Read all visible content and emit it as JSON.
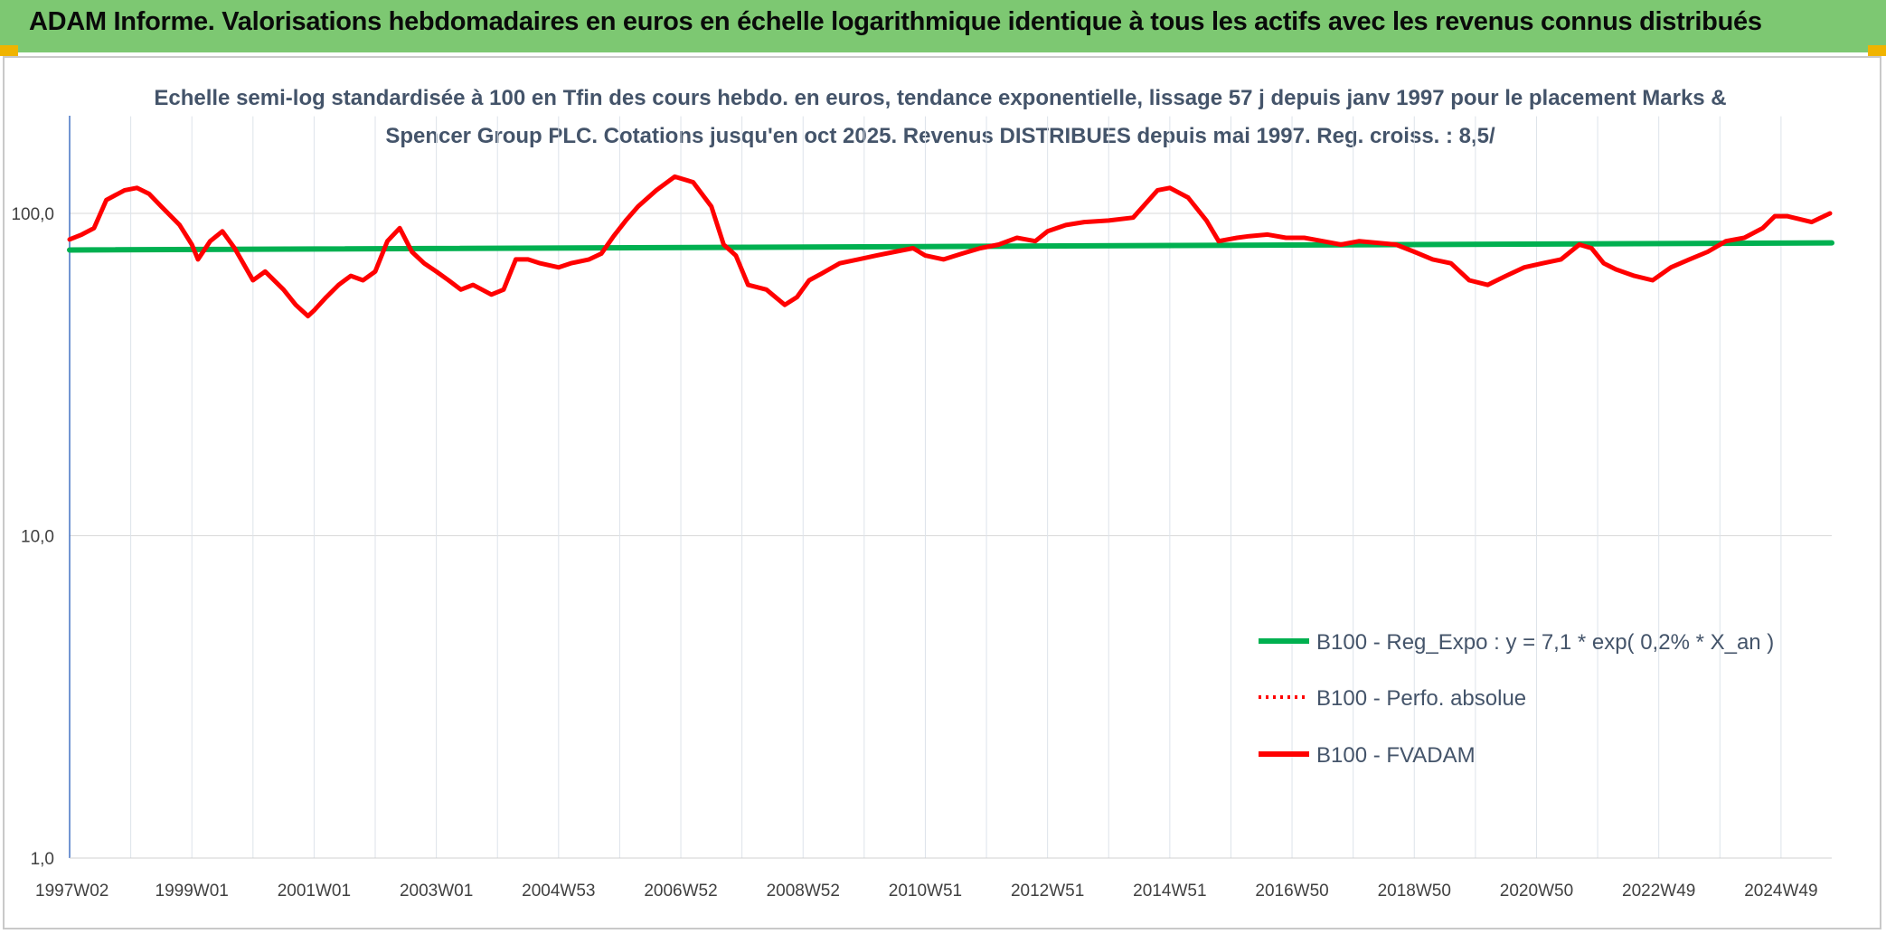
{
  "banner": {
    "title": "ADAM Informe. Valorisations hebdomadaires en euros en échelle logarithmique identique à tous les actifs avec les revenus connus distribués",
    "background": "#7dc872"
  },
  "chart_data": {
    "type": "line",
    "title": "Echelle semi-log standardisée à 100 en Tfin des cours hebdo. en euros, tendance exponentielle, lissage 57 j depuis janv 1997 pour le placement Marks & Spencer Group PLC. Cotations jusqu'en oct 2025. Revenus DISTRIBUES depuis mai 1997. Reg. croiss. : 8,5/",
    "y_scale": "log",
    "ylim": [
      1,
      200
    ],
    "y_ticks": [
      {
        "value": 1,
        "label": "1,0"
      },
      {
        "value": 10,
        "label": "10,0"
      },
      {
        "value": 100,
        "label": "100,0"
      }
    ],
    "xlim": [
      1997.0,
      2025.83
    ],
    "x_ticks": [
      {
        "value": 1997.0,
        "label": "1997W02"
      },
      {
        "value": 1999.0,
        "label": "1999W01"
      },
      {
        "value": 2001.0,
        "label": "2001W01"
      },
      {
        "value": 2003.0,
        "label": "2003W01"
      },
      {
        "value": 2005.0,
        "label": "2004W53"
      },
      {
        "value": 2007.0,
        "label": "2006W52"
      },
      {
        "value": 2009.0,
        "label": "2008W52"
      },
      {
        "value": 2011.0,
        "label": "2010W51"
      },
      {
        "value": 2013.0,
        "label": "2012W51"
      },
      {
        "value": 2015.0,
        "label": "2014W51"
      },
      {
        "value": 2017.0,
        "label": "2016W50"
      },
      {
        "value": 2019.0,
        "label": "2018W50"
      },
      {
        "value": 2021.0,
        "label": "2020W50"
      },
      {
        "value": 2023.0,
        "label": "2022W49"
      },
      {
        "value": 2025.0,
        "label": "2024W49"
      }
    ],
    "grid": "vertical",
    "legend_position": "right",
    "series": [
      {
        "name": "B100 - Reg_Expo : y = 7,1 * exp( 0,2% *  X_an )",
        "color": "#00b050",
        "style": "solid",
        "x": [
          1997.0,
          2025.83
        ],
        "y": [
          77,
          81
        ]
      },
      {
        "name": "B100 - Perfo. absolue",
        "color": "#ff0000",
        "style": "dotted",
        "x": [],
        "y": []
      },
      {
        "name": "B100 - FVADAM",
        "color": "#ff0000",
        "style": "solid",
        "x": [
          1997.0,
          1997.2,
          1997.4,
          1997.6,
          1997.9,
          1998.1,
          1998.3,
          1998.5,
          1998.8,
          1999.0,
          1999.1,
          1999.3,
          1999.5,
          1999.7,
          2000.0,
          2000.2,
          2000.5,
          2000.7,
          2000.9,
          2001.0,
          2001.2,
          2001.4,
          2001.6,
          2001.8,
          2002.0,
          2002.2,
          2002.4,
          2002.6,
          2002.8,
          2003.0,
          2003.2,
          2003.4,
          2003.6,
          2003.9,
          2004.1,
          2004.3,
          2004.5,
          2004.7,
          2005.0,
          2005.2,
          2005.5,
          2005.7,
          2005.9,
          2006.1,
          2006.3,
          2006.6,
          2006.9,
          2007.2,
          2007.5,
          2007.7,
          2007.9,
          2008.1,
          2008.4,
          2008.7,
          2008.9,
          2009.1,
          2009.3,
          2009.6,
          2009.9,
          2010.2,
          2010.5,
          2010.8,
          2011.0,
          2011.3,
          2011.6,
          2011.9,
          2012.2,
          2012.5,
          2012.8,
          2013.0,
          2013.3,
          2013.6,
          2014.0,
          2014.4,
          2014.8,
          2015.0,
          2015.3,
          2015.6,
          2015.8,
          2016.1,
          2016.3,
          2016.6,
          2016.9,
          2017.2,
          2017.5,
          2017.8,
          2018.1,
          2018.4,
          2018.7,
          2019.0,
          2019.3,
          2019.6,
          2019.9,
          2020.2,
          2020.5,
          2020.8,
          2021.1,
          2021.4,
          2021.7,
          2021.9,
          2022.1,
          2022.3,
          2022.6,
          2022.9,
          2023.2,
          2023.5,
          2023.8,
          2024.1,
          2024.4,
          2024.7,
          2024.9,
          2025.1,
          2025.3,
          2025.5,
          2025.8
        ],
        "y": [
          83,
          86,
          90,
          110,
          118,
          120,
          115,
          105,
          92,
          80,
          72,
          82,
          88,
          78,
          62,
          66,
          58,
          52,
          48,
          50,
          55,
          60,
          64,
          62,
          66,
          82,
          90,
          76,
          70,
          66,
          62,
          58,
          60,
          56,
          58,
          72,
          72,
          70,
          68,
          70,
          72,
          75,
          85,
          95,
          105,
          118,
          130,
          125,
          105,
          80,
          74,
          60,
          58,
          52,
          55,
          62,
          65,
          70,
          72,
          74,
          76,
          78,
          74,
          72,
          75,
          78,
          80,
          84,
          82,
          88,
          92,
          94,
          95,
          97,
          118,
          120,
          112,
          95,
          82,
          84,
          85,
          86,
          84,
          84,
          82,
          80,
          82,
          81,
          80,
          76,
          72,
          70,
          62,
          60,
          64,
          68,
          70,
          72,
          80,
          78,
          70,
          67,
          64,
          62,
          68,
          72,
          76,
          82,
          84,
          90,
          98,
          98,
          96,
          94,
          100
        ]
      }
    ]
  }
}
